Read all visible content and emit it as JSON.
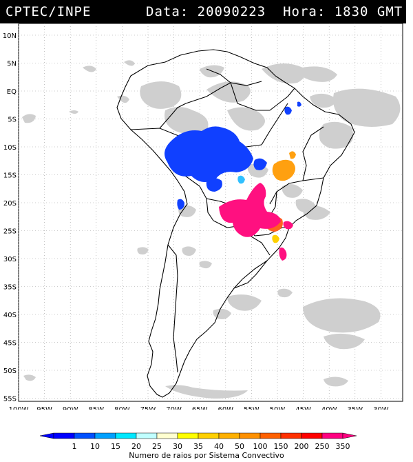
{
  "header": {
    "org": "CPTEC/INPE",
    "data_label": "Data:",
    "date": "20090223",
    "hora_label": "Hora:",
    "time": "1830 GMT"
  },
  "lat_labels": [
    "10N",
    "5N",
    "EQ",
    "5S",
    "10S",
    "15S",
    "20S",
    "25S",
    "30S",
    "35S",
    "40S",
    "45S",
    "50S",
    "55S"
  ],
  "lon_labels": [
    "100W",
    "95W",
    "90W",
    "85W",
    "80W",
    "75W",
    "70W",
    "65W",
    "60W",
    "55W",
    "50W",
    "45W",
    "40W",
    "35W",
    "30W"
  ],
  "legend": {
    "title": "Numero de raios por Sistema Convectivo",
    "ticks": [
      "1",
      "10",
      "15",
      "20",
      "25",
      "30",
      "35",
      "40",
      "50",
      "100",
      "150",
      "200",
      "250",
      "350"
    ],
    "colors": [
      "#0000ff",
      "#0050ff",
      "#00a0ff",
      "#00e8ff",
      "#c0ffff",
      "#ffffd0",
      "#ffff00",
      "#ffd000",
      "#ffb000",
      "#ff9000",
      "#ff6000",
      "#ff3000",
      "#ff0000",
      "#ff0080"
    ]
  },
  "colors": {
    "header_bg": "#000000",
    "header_text": "#ffffff",
    "cloud": "#c8c8c8",
    "coast": "#000000",
    "grid": "#9a9a9a"
  }
}
